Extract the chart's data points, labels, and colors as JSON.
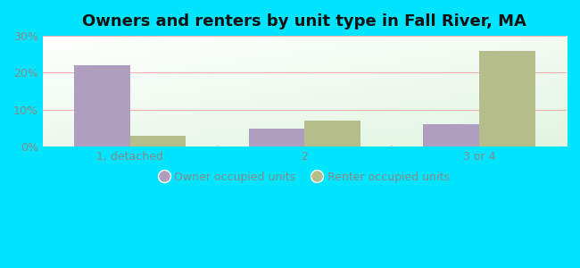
{
  "title": "Owners and renters by unit type in Fall River, MA",
  "categories": [
    "1, detached",
    "2",
    "3 or 4"
  ],
  "owner_values": [
    22,
    5,
    6
  ],
  "renter_values": [
    3,
    7,
    26
  ],
  "owner_color": "#b09ec0",
  "renter_color": "#b5be8a",
  "outer_bg": "#00e5ff",
  "ylim": [
    0,
    30
  ],
  "yticks": [
    0,
    10,
    20,
    30
  ],
  "ytick_labels": [
    "0%",
    "10%",
    "20%",
    "30%"
  ],
  "bar_width": 0.32,
  "legend_labels": [
    "Owner occupied units",
    "Renter occupied units"
  ],
  "title_fontsize": 13,
  "tick_fontsize": 9,
  "legend_fontsize": 9,
  "grid_color": "#f0b0b0",
  "separator_color": "#aaccaa"
}
